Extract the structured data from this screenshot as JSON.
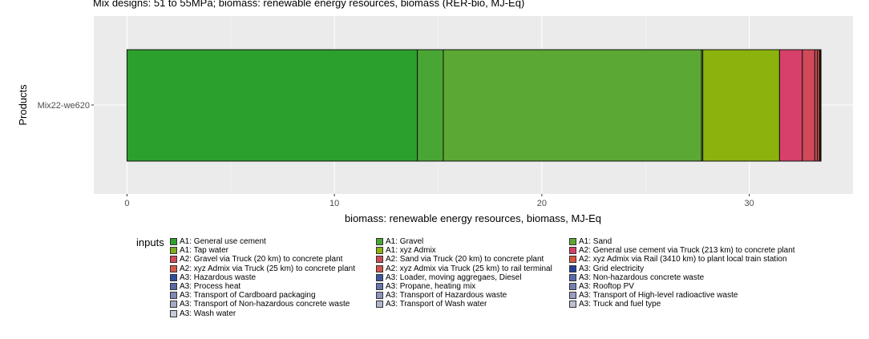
{
  "chart_data": {
    "type": "bar",
    "orientation": "horizontal",
    "stacked": true,
    "title": "Mix designs: 51 to 55MPa; biomass: renewable energy resources, biomass (RER-bio, MJ-Eq)",
    "xlabel": "biomass: renewable energy resources, biomass, MJ-Eq",
    "ylabel": "Products",
    "categories": [
      "Mix22-we620"
    ],
    "xlim": [
      -1.6,
      35.0
    ],
    "xticks": [
      0,
      10,
      20,
      30
    ],
    "grid": true,
    "legend_title": "inputs",
    "legend_position": "bottom",
    "series": [
      {
        "name": "A1: General use cement",
        "color": "#2ca02c",
        "values": [
          14.0
        ]
      },
      {
        "name": "A1: Gravel",
        "color": "#4aa634",
        "values": [
          1.25
        ]
      },
      {
        "name": "A1: Sand",
        "color": "#5ca834",
        "values": [
          12.45
        ]
      },
      {
        "name": "A1: Tap water",
        "color": "#7aae1c",
        "values": [
          0.06
        ]
      },
      {
        "name": "A1: xyz Admix",
        "color": "#8cb20e",
        "values": [
          3.7
        ]
      },
      {
        "name": "A2: General use cement via Truck (213 km) to concrete plant",
        "color": "#d6406a",
        "values": [
          1.1
        ]
      },
      {
        "name": "A2: Gravel via Truck (20 km) to concrete plant",
        "color": "#d04a5a",
        "values": [
          0.6
        ]
      },
      {
        "name": "A2: Sand via Truck (20 km) to concrete plant",
        "color": "#cf4c56",
        "values": [
          0.12
        ]
      },
      {
        "name": "A2: xyz Admix via Rail (3410 km) to plant local train station",
        "color": "#d8553e",
        "values": [
          0.1
        ]
      },
      {
        "name": "A2: xyz Admix via Truck (25 km) to concrete plant",
        "color": "#d35a48",
        "values": [
          0.04
        ]
      },
      {
        "name": "A2: xyz Admix via Truck (25 km) to rail terminal",
        "color": "#d2544c",
        "values": [
          0.02
        ]
      },
      {
        "name": "A3: Grid electricity",
        "color": "#23409a",
        "values": [
          0.01
        ]
      },
      {
        "name": "A3: Hazardous waste",
        "color": "#2d4e9e",
        "values": [
          0
        ]
      },
      {
        "name": "A3: Loader, moving aggregaes, Diesel",
        "color": "#3d56a0",
        "values": [
          0
        ]
      },
      {
        "name": "A3: Non-hazardous concrete waste",
        "color": "#5b6aa8",
        "values": [
          0
        ]
      },
      {
        "name": "A3: Process heat",
        "color": "#5a68a6",
        "values": [
          0
        ]
      },
      {
        "name": "A3: Propane, heating mix",
        "color": "#6874ab",
        "values": [
          0
        ]
      },
      {
        "name": "A3: Rooftop PV",
        "color": "#7480b0",
        "values": [
          0
        ]
      },
      {
        "name": "A3: Transport of Cardboard packaging",
        "color": "#8088b4",
        "values": [
          0
        ]
      },
      {
        "name": "A3: Transport of Hazardous waste",
        "color": "#8c94ba",
        "values": [
          0
        ]
      },
      {
        "name": "A3: Transport of High-level radioactive waste",
        "color": "#989fc0",
        "values": [
          0
        ]
      },
      {
        "name": "A3: Transport of Non-hazardous concrete waste",
        "color": "#a4aac6",
        "values": [
          0
        ]
      },
      {
        "name": "A3: Transport of Wash water",
        "color": "#b0b5cc",
        "values": [
          0
        ]
      },
      {
        "name": "A3: Truck and fuel type",
        "color": "#bcc0d2",
        "values": [
          0
        ]
      },
      {
        "name": "A3: Wash water",
        "color": "#c8cbd8",
        "values": [
          0
        ]
      }
    ],
    "stack_order": [
      "A1: General use cement",
      "A1: Gravel",
      "A1: Sand",
      "A1: Tap water",
      "A1: xyz Admix",
      "A2: General use cement via Truck (213 km) to concrete plant",
      "A2: Gravel via Truck (20 km) to concrete plant",
      "A2: Sand via Truck (20 km) to concrete plant",
      "A2: xyz Admix via Rail (3410 km) to plant local train station",
      "A2: xyz Admix via Truck (25 km) to concrete plant",
      "A2: xyz Admix via Truck (25 km) to rail terminal",
      "A3: Grid electricity"
    ],
    "legend_order": [
      "A1: General use cement",
      "A1: Gravel",
      "A1: Sand",
      "A1: Tap water",
      "A1: xyz Admix",
      "A2: General use cement via Truck (213 km) to concrete plant",
      "A2: Gravel via Truck (20 km) to concrete plant",
      "A2: Sand via Truck (20 km) to concrete plant",
      "A2: xyz Admix via Rail (3410 km) to plant local train station",
      "A2: xyz Admix via Truck (25 km) to concrete plant",
      "A2: xyz Admix via Truck (25 km) to rail terminal",
      "A3: Grid electricity",
      "A3: Hazardous waste",
      "A3: Loader, moving aggregaes, Diesel",
      "A3: Non-hazardous concrete waste",
      "A3: Process heat",
      "A3: Propane, heating mix",
      "A3: Rooftop PV",
      "A3: Transport of Cardboard packaging",
      "A3: Transport of Hazardous waste",
      "A3: Transport of High-level radioactive waste",
      "A3: Transport of Non-hazardous concrete waste",
      "A3: Transport of Wash water",
      "A3: Truck and fuel type",
      "A3: Wash water"
    ]
  }
}
